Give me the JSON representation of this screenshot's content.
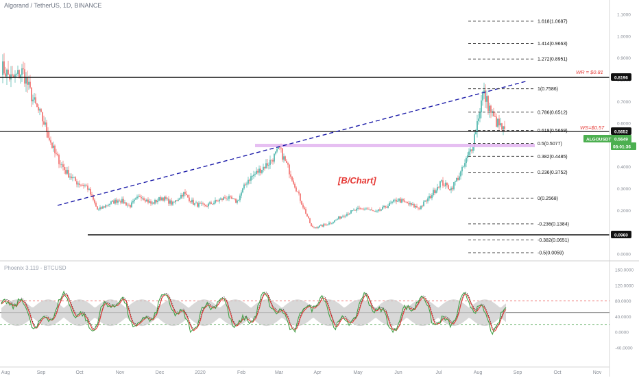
{
  "header": {
    "title": "Algorand / TetherUS, 1D, BINANCE",
    "oscillator_title": "Phoenix 3.119 - BTCUSD",
    "watermark": "[B/Chart]"
  },
  "price_axis": {
    "ticks": [
      "1.1000",
      "1.0000",
      "0.9000",
      "0.8000",
      "0.7000",
      "0.6000",
      "0.5000",
      "0.4000",
      "0.3000",
      "0.2000",
      "0.1000",
      "0.0000"
    ],
    "values": [
      1.1,
      1.0,
      0.9,
      0.8,
      0.7,
      0.6,
      0.5,
      0.4,
      0.3,
      0.2,
      0.1,
      0.0
    ]
  },
  "osc_axis": {
    "ticks": [
      "160.0000",
      "120.0000",
      "80.0000",
      "40.0000",
      "0.0000",
      "-40.0000"
    ],
    "values": [
      160,
      120,
      80,
      40,
      0,
      -40
    ]
  },
  "time_axis": {
    "labels": [
      "Aug",
      "Sep",
      "Oct",
      "Nov",
      "Dec",
      "2020",
      "Feb",
      "Mar",
      "Apr",
      "May",
      "Jun",
      "Jul",
      "Aug",
      "Sep",
      "Oct",
      "Nov"
    ]
  },
  "fibonacci": [
    {
      "label": "1.618(1.0687)",
      "value": 1.0687
    },
    {
      "label": "1.414(0.9663)",
      "value": 0.9663
    },
    {
      "label": "1.272(0.8951)",
      "value": 0.8951
    },
    {
      "label": "1(0.7586)",
      "value": 0.7586
    },
    {
      "label": "0.786(0.6512)",
      "value": 0.6512
    },
    {
      "label": "0.618(0.5669)",
      "value": 0.5669
    },
    {
      "label": "0.5(0.5077)",
      "value": 0.5077
    },
    {
      "label": "0.382(0.4485)",
      "value": 0.4485
    },
    {
      "label": "0.236(0.3752)",
      "value": 0.3752
    },
    {
      "label": "0(0.2568)",
      "value": 0.2568
    },
    {
      "label": "-0.236(0.1384)",
      "value": 0.1384
    },
    {
      "label": "-0.382(0.0651)",
      "value": 0.0651
    },
    {
      "label": "-0.5(0.0059)",
      "value": 0.0059
    }
  ],
  "annotations": {
    "wr": "WR = $0.81",
    "ws": "WS=$0.57"
  },
  "badges": {
    "resistance": "0.8196",
    "current_level": "0.5652",
    "symbol": "ALGOUSDT",
    "symbol_price": "0.5649",
    "countdown": "08:01:36",
    "support": "0.0960"
  },
  "colors": {
    "up": "#26a69a",
    "down": "#ef5350",
    "trendline": "#1a1aa8",
    "zone": "#e2b4f0",
    "badge_black": "#111111",
    "badge_green": "#4caf50",
    "osc_red": "#e53935",
    "osc_green": "#43a047",
    "osc_band": "#c8c8c8"
  },
  "chart_data": [
    {
      "type": "candlestick",
      "title": "Algorand / TetherUS, 1D, BINANCE",
      "x_labels": [
        "Aug",
        "Sep",
        "Oct",
        "Nov",
        "Dec",
        "2020",
        "Feb",
        "Mar",
        "Apr",
        "May",
        "Jun",
        "Jul",
        "Aug",
        "Sep",
        "Oct",
        "Nov"
      ],
      "ylim": [
        0.0,
        1.1
      ],
      "close_path": [
        [
          "Aug",
          0.86
        ],
        [
          "Aug",
          0.8
        ],
        [
          "Aug",
          0.84
        ],
        [
          "Aug",
          0.7
        ],
        [
          "Aug",
          0.6
        ],
        [
          "Sep",
          0.46
        ],
        [
          "Sep",
          0.38
        ],
        [
          "Sep",
          0.33
        ],
        [
          "Sep",
          0.31
        ],
        [
          "Oct",
          0.2
        ],
        [
          "Oct",
          0.23
        ],
        [
          "Oct",
          0.25
        ],
        [
          "Nov",
          0.22
        ],
        [
          "Nov",
          0.27
        ],
        [
          "Nov",
          0.23
        ],
        [
          "Nov",
          0.26
        ],
        [
          "Dec",
          0.23
        ],
        [
          "Dec",
          0.28
        ],
        [
          "Dec",
          0.23
        ],
        [
          "2020",
          0.22
        ],
        [
          "2020",
          0.24
        ],
        [
          "2020",
          0.26
        ],
        [
          "2020",
          0.24
        ],
        [
          "Feb",
          0.34
        ],
        [
          "Feb",
          0.38
        ],
        [
          "Feb",
          0.42
        ],
        [
          "Feb",
          0.48
        ],
        [
          "Feb",
          0.37
        ],
        [
          "Mar",
          0.24
        ],
        [
          "Mar",
          0.12
        ],
        [
          "Mar",
          0.13
        ],
        [
          "Mar",
          0.15
        ],
        [
          "Apr",
          0.18
        ],
        [
          "Apr",
          0.2
        ],
        [
          "May",
          0.21
        ],
        [
          "May",
          0.19
        ],
        [
          "Jun",
          0.22
        ],
        [
          "Jun",
          0.25
        ],
        [
          "Jun",
          0.23
        ],
        [
          "Jul",
          0.21
        ],
        [
          "Jul",
          0.26
        ],
        [
          "Jul",
          0.33
        ],
        [
          "Jul",
          0.3
        ],
        [
          "Aug",
          0.38
        ],
        [
          "Aug",
          0.5
        ],
        [
          "Aug",
          0.74
        ],
        [
          "Aug",
          0.62
        ],
        [
          "Aug",
          0.56
        ]
      ],
      "levels": {
        "resistance": 0.8196,
        "current": 0.5652,
        "last": 0.5649,
        "support": 0.096
      },
      "grid": false
    },
    {
      "type": "line",
      "title": "Phoenix 3.119 - BTCUSD",
      "ylim": [
        -40,
        160
      ],
      "levels": [
        80,
        50,
        20
      ],
      "series_colors": [
        "#e53935",
        "#43a047"
      ],
      "grid": false
    }
  ]
}
